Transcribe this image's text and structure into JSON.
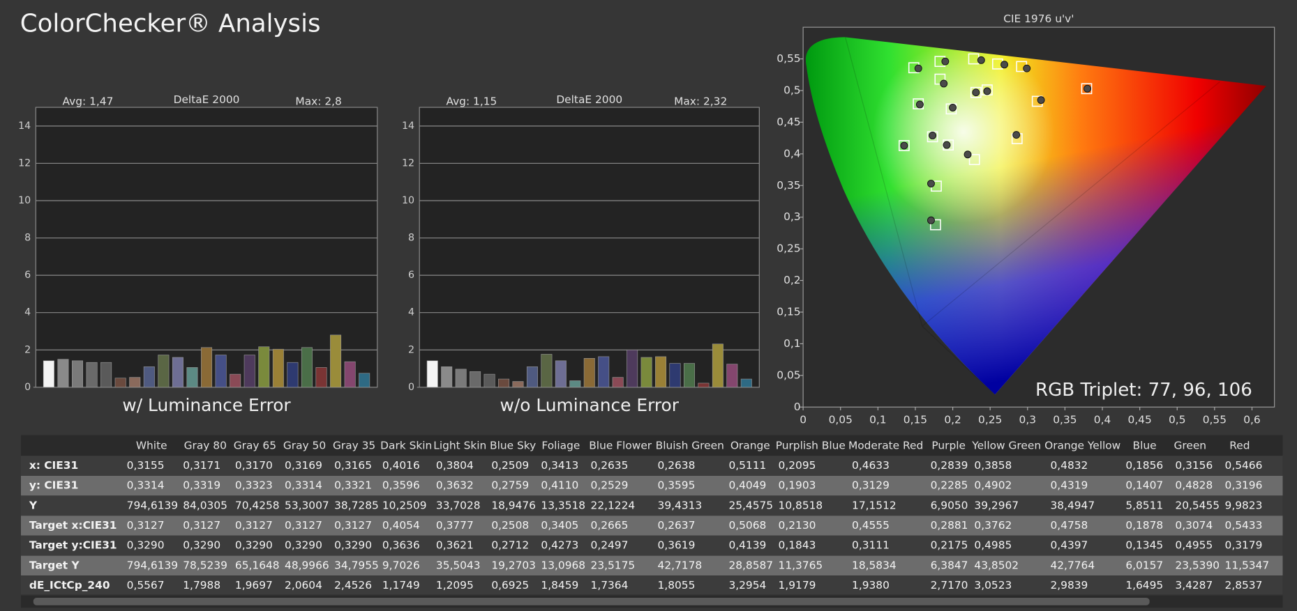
{
  "page_title": "ColorChecker® Analysis",
  "rgb_triplet": "RGB Triplet: 77, 96, 106",
  "chart_data": [
    {
      "type": "bar",
      "title": "DeltaE 2000",
      "annotations": [
        "Avg: 1,47",
        "Max: 2,8"
      ],
      "xlabel": "w/ Luminance Error",
      "values": [
        1.42,
        1.5,
        1.42,
        1.33,
        1.33,
        0.49,
        0.53,
        1.1,
        1.73,
        1.6,
        1.06,
        2.13,
        1.73,
        0.7,
        1.73,
        2.17,
        2.04,
        1.33,
        2.13,
        1.06,
        2.8,
        1.37,
        0.75
      ],
      "colors": [
        "#f4f4f4",
        "#8a8a8a",
        "#7a7a7a",
        "#6a6a6a",
        "#5a5a5a",
        "#6a4a3e",
        "#8a6a5c",
        "#4f5a80",
        "#5a6644",
        "#6e6e94",
        "#5c8a84",
        "#8a6a36",
        "#454f86",
        "#8a4a56",
        "#4e3a5c",
        "#7a8a3c",
        "#9a8036",
        "#2e3a70",
        "#4a6e48",
        "#7a3434",
        "#9a8c3a",
        "#84466e",
        "#2e6a84"
      ],
      "ylim": [
        0,
        15
      ],
      "yticks": [
        0,
        2,
        4,
        6,
        8,
        10,
        12,
        14
      ],
      "grid": true
    },
    {
      "type": "bar",
      "title": "DeltaE 2000",
      "annotations": [
        "Avg: 1,15",
        "Max: 2,32"
      ],
      "xlabel": "w/o Luminance Error",
      "values": [
        1.42,
        1.1,
        0.97,
        0.84,
        0.7,
        0.44,
        0.31,
        1.1,
        1.77,
        1.42,
        0.35,
        1.55,
        1.64,
        0.53,
        2.0,
        1.6,
        1.64,
        1.28,
        1.28,
        0.22,
        2.32,
        1.24,
        0.44
      ],
      "colors": [
        "#f4f4f4",
        "#8a8a8a",
        "#7a7a7a",
        "#6a6a6a",
        "#5a5a5a",
        "#6a4a3e",
        "#8a6a5c",
        "#4f5a80",
        "#5a6644",
        "#6e6e94",
        "#5c8a84",
        "#8a6a36",
        "#454f86",
        "#8a4a56",
        "#4e3a5c",
        "#7a8a3c",
        "#9a8036",
        "#2e3a70",
        "#4a6e48",
        "#7a3434",
        "#9a8c3a",
        "#84466e",
        "#2e6a84"
      ],
      "ylim": [
        0,
        15
      ],
      "yticks": [
        0,
        2,
        4,
        6,
        8,
        10,
        12,
        14
      ],
      "grid": true
    },
    {
      "type": "scatter",
      "title": "CIE 1976 u'v'",
      "xlim": [
        0,
        0.63
      ],
      "ylim": [
        0,
        0.6
      ],
      "xticks": [
        0,
        {
          "value": 0.05,
          "label": "0,05"
        },
        {
          "value": 0.1,
          "label": "0,1"
        },
        {
          "value": 0.15,
          "label": "0,15"
        },
        {
          "value": 0.2,
          "label": "0,2"
        },
        {
          "value": 0.25,
          "label": "0,25"
        },
        {
          "value": 0.3,
          "label": "0,3"
        },
        {
          "value": 0.35,
          "label": "0,35"
        },
        {
          "value": 0.4,
          "label": "0,4"
        },
        {
          "value": 0.45,
          "label": "0,45"
        },
        {
          "value": 0.5,
          "label": "0,5"
        },
        {
          "value": 0.55,
          "label": "0,55"
        },
        {
          "value": 0.6,
          "label": "0,6"
        }
      ],
      "yticks": [
        0,
        {
          "value": 0.05,
          "label": "0,05"
        },
        {
          "value": 0.1,
          "label": "0,1"
        },
        {
          "value": 0.15,
          "label": "0,15"
        },
        {
          "value": 0.2,
          "label": "0,2"
        },
        {
          "value": 0.25,
          "label": "0,25"
        },
        {
          "value": 0.3,
          "label": "0,3"
        },
        {
          "value": 0.35,
          "label": "0,35"
        },
        {
          "value": 0.4,
          "label": "0,4"
        },
        {
          "value": 0.45,
          "label": "0,45"
        },
        {
          "value": 0.5,
          "label": "0,5"
        },
        {
          "value": 0.55,
          "label": "0,55"
        }
      ],
      "series": [
        {
          "marker": "square",
          "color": "#ffffff",
          "x": [
            0.148,
            0.183,
            0.228,
            0.26,
            0.292,
            0.183,
            0.231,
            0.246,
            0.313,
            0.379,
            0.154,
            0.198,
            0.135,
            0.173,
            0.194,
            0.286,
            0.229,
            0.178,
            0.177
          ],
          "y": [
            0.536,
            0.546,
            0.55,
            0.542,
            0.538,
            0.518,
            0.497,
            0.501,
            0.483,
            0.503,
            0.479,
            0.471,
            0.413,
            0.427,
            0.414,
            0.424,
            0.391,
            0.349,
            0.288
          ]
        },
        {
          "marker": "circle",
          "color": "#4a4a4a",
          "x": [
            0.154,
            0.19,
            0.238,
            0.269,
            0.299,
            0.188,
            0.231,
            0.246,
            0.318,
            0.38,
            0.156,
            0.2,
            0.135,
            0.173,
            0.192,
            0.285,
            0.22,
            0.171,
            0.171
          ],
          "y": [
            0.535,
            0.546,
            0.548,
            0.541,
            0.535,
            0.511,
            0.497,
            0.499,
            0.485,
            0.503,
            0.478,
            0.473,
            0.413,
            0.429,
            0.414,
            0.43,
            0.399,
            0.353,
            0.295
          ]
        }
      ]
    }
  ],
  "table": {
    "header": [
      "White",
      "Gray 80",
      "Gray 65",
      "Gray 50",
      "Gray 35",
      "Dark Skin",
      "Light Skin",
      "Blue Sky",
      "Foliage",
      "Blue Flower",
      "Bluish Green",
      "Orange",
      "Purplish Blue",
      "Moderate Red",
      "Purple",
      "Yellow Green",
      "Orange Yellow",
      "Blue",
      "Green",
      "Red"
    ],
    "rows": [
      [
        "x: CIE31",
        "0,3155",
        "0,3171",
        "0,3170",
        "0,3169",
        "0,3165",
        "0,4016",
        "0,3804",
        "0,2509",
        "0,3413",
        "0,2635",
        "0,2638",
        "0,5111",
        "0,2095",
        "0,4633",
        "0,2839",
        "0,3858",
        "0,4832",
        "0,1856",
        "0,3156",
        "0,5466"
      ],
      [
        "y: CIE31",
        "0,3314",
        "0,3319",
        "0,3323",
        "0,3314",
        "0,3321",
        "0,3596",
        "0,3632",
        "0,2759",
        "0,4110",
        "0,2529",
        "0,3595",
        "0,4049",
        "0,1903",
        "0,3129",
        "0,2285",
        "0,4902",
        "0,4319",
        "0,1407",
        "0,4828",
        "0,3196"
      ],
      [
        "Y",
        "794,6139",
        "84,0305",
        "70,4258",
        "53,3007",
        "38,7285",
        "10,2509",
        "33,7028",
        "18,9476",
        "13,3518",
        "22,1224",
        "39,4313",
        "25,4575",
        "10,8518",
        "17,1512",
        "6,9050",
        "39,2967",
        "38,4947",
        "5,8511",
        "20,5455",
        "9,9823"
      ],
      [
        "Target x:CIE31",
        "0,3127",
        "0,3127",
        "0,3127",
        "0,3127",
        "0,3127",
        "0,4054",
        "0,3777",
        "0,2508",
        "0,3405",
        "0,2665",
        "0,2637",
        "0,5068",
        "0,2130",
        "0,4555",
        "0,2881",
        "0,3762",
        "0,4758",
        "0,1878",
        "0,3074",
        "0,5433"
      ],
      [
        "Target y:CIE31",
        "0,3290",
        "0,3290",
        "0,3290",
        "0,3290",
        "0,3290",
        "0,3636",
        "0,3621",
        "0,2712",
        "0,4273",
        "0,2497",
        "0,3619",
        "0,4139",
        "0,1843",
        "0,3111",
        "0,2175",
        "0,4985",
        "0,4397",
        "0,1345",
        "0,4955",
        "0,3179"
      ],
      [
        "Target Y",
        "794,6139",
        "78,5239",
        "65,1648",
        "48,9966",
        "34,7955",
        "9,7026",
        "35,5043",
        "19,2703",
        "13,0968",
        "23,5175",
        "42,7178",
        "28,8587",
        "11,3765",
        "18,5834",
        "6,3847",
        "43,8502",
        "42,7764",
        "6,0157",
        "23,5390",
        "11,5347"
      ],
      [
        "dE_ICtCp_240",
        "0,5567",
        "1,7988",
        "1,9697",
        "2,0604",
        "2,4526",
        "1,1749",
        "1,2095",
        "0,6925",
        "1,8459",
        "1,7364",
        "1,8055",
        "3,2954",
        "1,9179",
        "1,9380",
        "2,7170",
        "3,0523",
        "2,9839",
        "1,6495",
        "3,4287",
        "2,8537"
      ]
    ]
  }
}
